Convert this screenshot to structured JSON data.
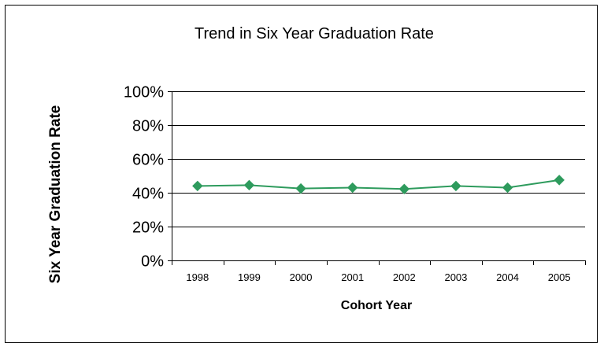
{
  "chart_data": {
    "type": "line",
    "title": "Trend in Six Year Graduation Rate",
    "xlabel": "Cohort Year",
    "ylabel": "Six Year Graduation Rate",
    "categories": [
      "1998",
      "1999",
      "2000",
      "2001",
      "2002",
      "2003",
      "2004",
      "2005"
    ],
    "series": [
      {
        "values": [
          0.44,
          0.445,
          0.425,
          0.43,
          0.422,
          0.44,
          0.43,
          0.475
        ],
        "color": "#2E9B5D"
      }
    ],
    "ylim": [
      0,
      1
    ],
    "yticks": [
      0,
      0.2,
      0.4,
      0.6,
      0.8,
      1.0
    ],
    "ytick_labels": [
      "0%",
      "20%",
      "40%",
      "60%",
      "80%",
      "100%"
    ],
    "grid": true,
    "legend": "none",
    "marker": "diamond"
  }
}
